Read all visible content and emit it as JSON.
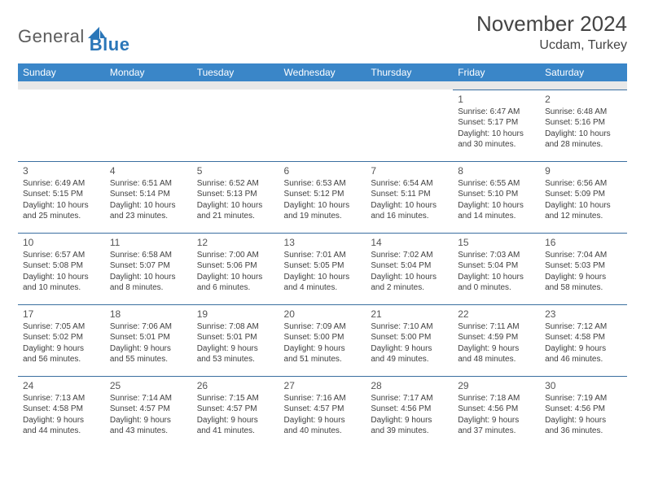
{
  "logo": {
    "text1": "General",
    "text2": "Blue"
  },
  "title": "November 2024",
  "location": "Ucdam, Turkey",
  "colors": {
    "header_bg": "#3a86c8",
    "header_text": "#ffffff",
    "cell_border": "#3a6fa0",
    "spacer_bg": "#e8e8e8",
    "text": "#404040"
  },
  "day_headers": [
    "Sunday",
    "Monday",
    "Tuesday",
    "Wednesday",
    "Thursday",
    "Friday",
    "Saturday"
  ],
  "weeks": [
    [
      null,
      null,
      null,
      null,
      null,
      {
        "n": "1",
        "sr": "Sunrise: 6:47 AM",
        "ss": "Sunset: 5:17 PM",
        "d1": "Daylight: 10 hours",
        "d2": "and 30 minutes."
      },
      {
        "n": "2",
        "sr": "Sunrise: 6:48 AM",
        "ss": "Sunset: 5:16 PM",
        "d1": "Daylight: 10 hours",
        "d2": "and 28 minutes."
      }
    ],
    [
      {
        "n": "3",
        "sr": "Sunrise: 6:49 AM",
        "ss": "Sunset: 5:15 PM",
        "d1": "Daylight: 10 hours",
        "d2": "and 25 minutes."
      },
      {
        "n": "4",
        "sr": "Sunrise: 6:51 AM",
        "ss": "Sunset: 5:14 PM",
        "d1": "Daylight: 10 hours",
        "d2": "and 23 minutes."
      },
      {
        "n": "5",
        "sr": "Sunrise: 6:52 AM",
        "ss": "Sunset: 5:13 PM",
        "d1": "Daylight: 10 hours",
        "d2": "and 21 minutes."
      },
      {
        "n": "6",
        "sr": "Sunrise: 6:53 AM",
        "ss": "Sunset: 5:12 PM",
        "d1": "Daylight: 10 hours",
        "d2": "and 19 minutes."
      },
      {
        "n": "7",
        "sr": "Sunrise: 6:54 AM",
        "ss": "Sunset: 5:11 PM",
        "d1": "Daylight: 10 hours",
        "d2": "and 16 minutes."
      },
      {
        "n": "8",
        "sr": "Sunrise: 6:55 AM",
        "ss": "Sunset: 5:10 PM",
        "d1": "Daylight: 10 hours",
        "d2": "and 14 minutes."
      },
      {
        "n": "9",
        "sr": "Sunrise: 6:56 AM",
        "ss": "Sunset: 5:09 PM",
        "d1": "Daylight: 10 hours",
        "d2": "and 12 minutes."
      }
    ],
    [
      {
        "n": "10",
        "sr": "Sunrise: 6:57 AM",
        "ss": "Sunset: 5:08 PM",
        "d1": "Daylight: 10 hours",
        "d2": "and 10 minutes."
      },
      {
        "n": "11",
        "sr": "Sunrise: 6:58 AM",
        "ss": "Sunset: 5:07 PM",
        "d1": "Daylight: 10 hours",
        "d2": "and 8 minutes."
      },
      {
        "n": "12",
        "sr": "Sunrise: 7:00 AM",
        "ss": "Sunset: 5:06 PM",
        "d1": "Daylight: 10 hours",
        "d2": "and 6 minutes."
      },
      {
        "n": "13",
        "sr": "Sunrise: 7:01 AM",
        "ss": "Sunset: 5:05 PM",
        "d1": "Daylight: 10 hours",
        "d2": "and 4 minutes."
      },
      {
        "n": "14",
        "sr": "Sunrise: 7:02 AM",
        "ss": "Sunset: 5:04 PM",
        "d1": "Daylight: 10 hours",
        "d2": "and 2 minutes."
      },
      {
        "n": "15",
        "sr": "Sunrise: 7:03 AM",
        "ss": "Sunset: 5:04 PM",
        "d1": "Daylight: 10 hours",
        "d2": "and 0 minutes."
      },
      {
        "n": "16",
        "sr": "Sunrise: 7:04 AM",
        "ss": "Sunset: 5:03 PM",
        "d1": "Daylight: 9 hours",
        "d2": "and 58 minutes."
      }
    ],
    [
      {
        "n": "17",
        "sr": "Sunrise: 7:05 AM",
        "ss": "Sunset: 5:02 PM",
        "d1": "Daylight: 9 hours",
        "d2": "and 56 minutes."
      },
      {
        "n": "18",
        "sr": "Sunrise: 7:06 AM",
        "ss": "Sunset: 5:01 PM",
        "d1": "Daylight: 9 hours",
        "d2": "and 55 minutes."
      },
      {
        "n": "19",
        "sr": "Sunrise: 7:08 AM",
        "ss": "Sunset: 5:01 PM",
        "d1": "Daylight: 9 hours",
        "d2": "and 53 minutes."
      },
      {
        "n": "20",
        "sr": "Sunrise: 7:09 AM",
        "ss": "Sunset: 5:00 PM",
        "d1": "Daylight: 9 hours",
        "d2": "and 51 minutes."
      },
      {
        "n": "21",
        "sr": "Sunrise: 7:10 AM",
        "ss": "Sunset: 5:00 PM",
        "d1": "Daylight: 9 hours",
        "d2": "and 49 minutes."
      },
      {
        "n": "22",
        "sr": "Sunrise: 7:11 AM",
        "ss": "Sunset: 4:59 PM",
        "d1": "Daylight: 9 hours",
        "d2": "and 48 minutes."
      },
      {
        "n": "23",
        "sr": "Sunrise: 7:12 AM",
        "ss": "Sunset: 4:58 PM",
        "d1": "Daylight: 9 hours",
        "d2": "and 46 minutes."
      }
    ],
    [
      {
        "n": "24",
        "sr": "Sunrise: 7:13 AM",
        "ss": "Sunset: 4:58 PM",
        "d1": "Daylight: 9 hours",
        "d2": "and 44 minutes."
      },
      {
        "n": "25",
        "sr": "Sunrise: 7:14 AM",
        "ss": "Sunset: 4:57 PM",
        "d1": "Daylight: 9 hours",
        "d2": "and 43 minutes."
      },
      {
        "n": "26",
        "sr": "Sunrise: 7:15 AM",
        "ss": "Sunset: 4:57 PM",
        "d1": "Daylight: 9 hours",
        "d2": "and 41 minutes."
      },
      {
        "n": "27",
        "sr": "Sunrise: 7:16 AM",
        "ss": "Sunset: 4:57 PM",
        "d1": "Daylight: 9 hours",
        "d2": "and 40 minutes."
      },
      {
        "n": "28",
        "sr": "Sunrise: 7:17 AM",
        "ss": "Sunset: 4:56 PM",
        "d1": "Daylight: 9 hours",
        "d2": "and 39 minutes."
      },
      {
        "n": "29",
        "sr": "Sunrise: 7:18 AM",
        "ss": "Sunset: 4:56 PM",
        "d1": "Daylight: 9 hours",
        "d2": "and 37 minutes."
      },
      {
        "n": "30",
        "sr": "Sunrise: 7:19 AM",
        "ss": "Sunset: 4:56 PM",
        "d1": "Daylight: 9 hours",
        "d2": "and 36 minutes."
      }
    ]
  ]
}
